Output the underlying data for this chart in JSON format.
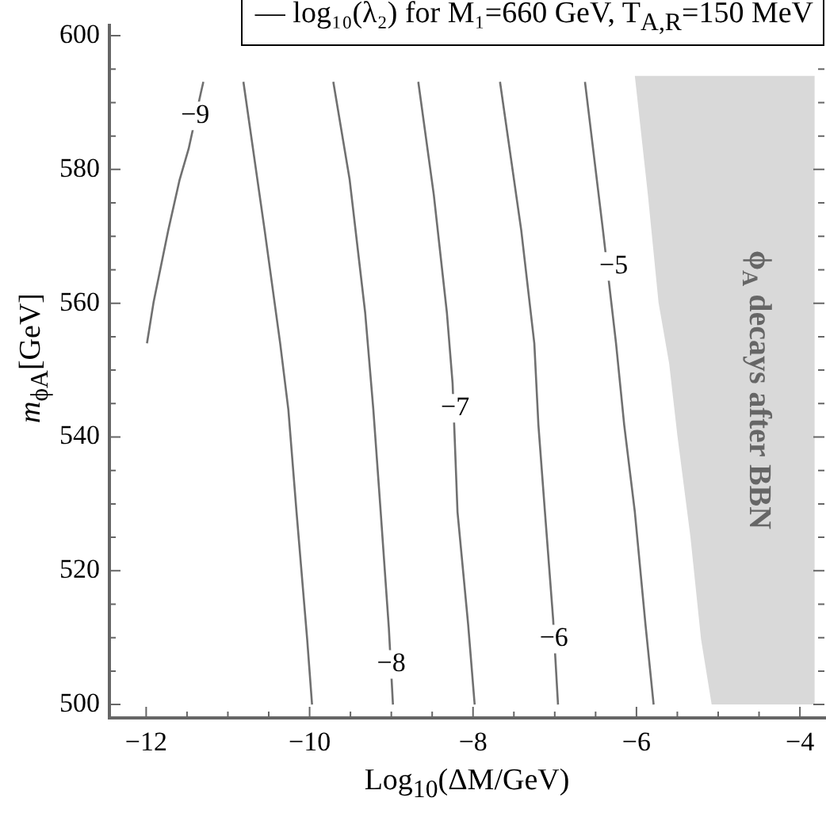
{
  "chart_data": {
    "type": "line",
    "xlabel": "Log$_{10}$(ΔM/GeV)",
    "ylabel": "m$_{ϕA}$[GeV]",
    "legend_title": "— log₁₀(λ₂) for M₁=660 GeV, T$_{A,R}$=150 MeV",
    "marker": "none",
    "xlim": [
      -12.45,
      -3.7
    ],
    "ylim": [
      498,
      601.5
    ],
    "xticks": [
      -12,
      {
        "value": -11.5,
        "label": null
      },
      {
        "value": -11,
        "label": null
      },
      {
        "value": -10.5,
        "label": null
      },
      -10,
      {
        "value": -9.5,
        "label": null
      },
      {
        "value": -9,
        "label": null
      },
      {
        "value": -8.5,
        "label": null
      },
      -8,
      {
        "value": -7.5,
        "label": null
      },
      {
        "value": -7,
        "label": null
      },
      {
        "value": -6.5,
        "label": null
      },
      -6,
      {
        "value": -5.5,
        "label": null
      },
      {
        "value": -5,
        "label": null
      },
      {
        "value": -4.5,
        "label": null
      },
      -4
    ],
    "yticks": [
      500,
      {
        "value": 505,
        "label": null
      },
      {
        "value": 510,
        "label": null
      },
      {
        "value": 515,
        "label": null
      },
      520,
      {
        "value": 525,
        "label": null
      },
      {
        "value": 530,
        "label": null
      },
      {
        "value": 535,
        "label": null
      },
      540,
      {
        "value": 545,
        "label": null
      },
      {
        "value": 550,
        "label": null
      },
      {
        "value": 555,
        "label": null
      },
      560,
      {
        "value": 565,
        "label": null
      },
      {
        "value": 570,
        "label": null
      },
      {
        "value": 575,
        "label": null
      },
      580,
      {
        "value": 585,
        "label": null
      },
      {
        "value": 590,
        "label": null
      },
      {
        "value": 595,
        "label": null
      },
      600
    ],
    "series": [
      {
        "type": "area",
        "name": "ϕ$_{A}$ decays after BBN",
        "color": "#d9d9d9",
        "x": [
          -6.02,
          -5.86,
          -5.73,
          -5.6,
          -5.5,
          -5.34,
          -5.21,
          -5.08,
          -3.82,
          -3.82
        ],
        "values": [
          594,
          576.2,
          560.1,
          551,
          540.3,
          525.1,
          509.8,
          500,
          500,
          594
        ]
      },
      {
        "color": "#707070",
        "x": [
          -11.99,
          -11.91,
          -11.73,
          -11.59,
          -11.48,
          -11.33,
          -11.3
        ],
        "values": [
          554,
          560.1,
          570.9,
          578.5,
          583.1,
          591.5,
          593.1
        ]
      },
      {
        "color": "#707070",
        "x": [
          -10.81,
          -10.55,
          -10.36,
          -10.26,
          -10.16,
          -10.03,
          -9.97
        ],
        "values": [
          593.1,
          570.9,
          554,
          544.1,
          528.8,
          509.8,
          500
        ]
      },
      {
        "color": "#707070",
        "x": [
          -9.71,
          -9.51,
          -9.32,
          -9.22,
          -9.13,
          -9.03,
          -8.98
        ],
        "values": [
          593.1,
          578.5,
          558.6,
          544.1,
          528.8,
          511.4,
          500
        ]
      },
      {
        "color": "#707070",
        "x": [
          -8.67,
          -8.48,
          -8.32,
          -8.25,
          -8.19,
          -8.06,
          -7.98
        ],
        "values": [
          593.1,
          576.2,
          558.6,
          548,
          528.8,
          512,
          500
        ]
      },
      {
        "color": "#707070",
        "x": [
          -7.67,
          -7.41,
          -7.25,
          -7.2,
          -7.12,
          -7.02,
          -6.96
        ],
        "values": [
          593.1,
          570.9,
          554,
          541.8,
          528.8,
          512.8,
          500
        ]
      },
      {
        "color": "#707070",
        "x": [
          -6.63,
          -6.41,
          -6.25,
          -6.15,
          -6.02,
          -5.89,
          -5.79
        ],
        "values": [
          593.1,
          570.9,
          554,
          541.8,
          528.8,
          512,
          500
        ]
      }
    ],
    "annotations": [
      {
        "text": "−9",
        "x": -11.4,
        "y": 588
      },
      {
        "text": "−8",
        "x": -9.0,
        "y": 506
      },
      {
        "text": "−7",
        "x": -8.22,
        "y": 544.3
      },
      {
        "text": "−6",
        "x": -7.01,
        "y": 509.8
      },
      {
        "text": "−5",
        "x": -6.28,
        "y": 565.5
      }
    ]
  }
}
